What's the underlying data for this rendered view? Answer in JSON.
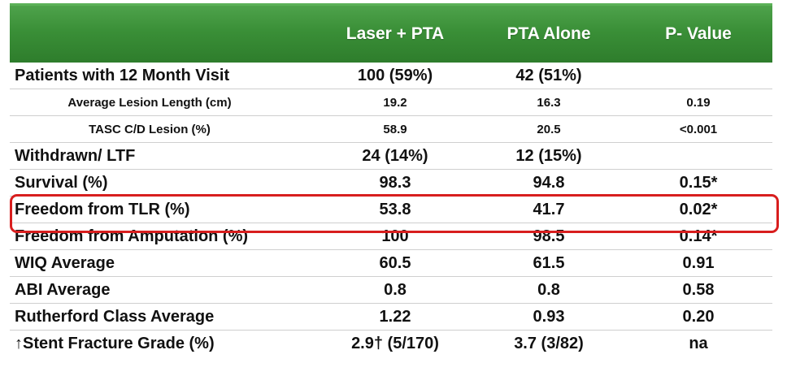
{
  "table": {
    "headers": [
      "",
      "Laser + PTA",
      "PTA Alone",
      "P- Value"
    ],
    "rows": [
      {
        "label": "Patients with 12 Month Visit",
        "laser": "100 (59%)",
        "pta": "42 (51%)",
        "p": "",
        "style": "big"
      },
      {
        "label": "Average Lesion Length (cm)",
        "laser": "19.2",
        "pta": "16.3",
        "p": "0.19",
        "style": "small"
      },
      {
        "label": "TASC C/D Lesion (%)",
        "laser": "58.9",
        "pta": "20.5",
        "p": "<0.001",
        "style": "small"
      },
      {
        "label": "Withdrawn/ LTF",
        "laser": "24 (14%)",
        "pta": "12 (15%)",
        "p": "",
        "style": "big"
      },
      {
        "label": "Survival (%)",
        "laser": "98.3",
        "pta": "94.8",
        "p": "0.15*",
        "style": "big"
      },
      {
        "label": "Freedom from TLR (%)",
        "laser": "53.8",
        "pta": "41.7",
        "p": "0.02*",
        "style": "big",
        "highlighted": true
      },
      {
        "label": "Freedom from Amputation (%)",
        "laser": "100",
        "pta": "98.5",
        "p": "0.14*",
        "style": "big"
      },
      {
        "label": "WIQ Average",
        "laser": "60.5",
        "pta": "61.5",
        "p": "0.91",
        "style": "big"
      },
      {
        "label": "ABI Average",
        "laser": "0.8",
        "pta": "0.8",
        "p": "0.58",
        "style": "big"
      },
      {
        "label": "Rutherford Class Average",
        "laser": "1.22",
        "pta": "0.93",
        "p": "0.20",
        "style": "big"
      },
      {
        "label": "↑Stent Fracture Grade (%)",
        "laser": "2.9† (5/170)",
        "pta": "3.7 (3/82)",
        "p": "na",
        "style": "big"
      }
    ]
  },
  "colors": {
    "header_green": "#3a8f37",
    "highlight_red": "#d81e1e"
  }
}
